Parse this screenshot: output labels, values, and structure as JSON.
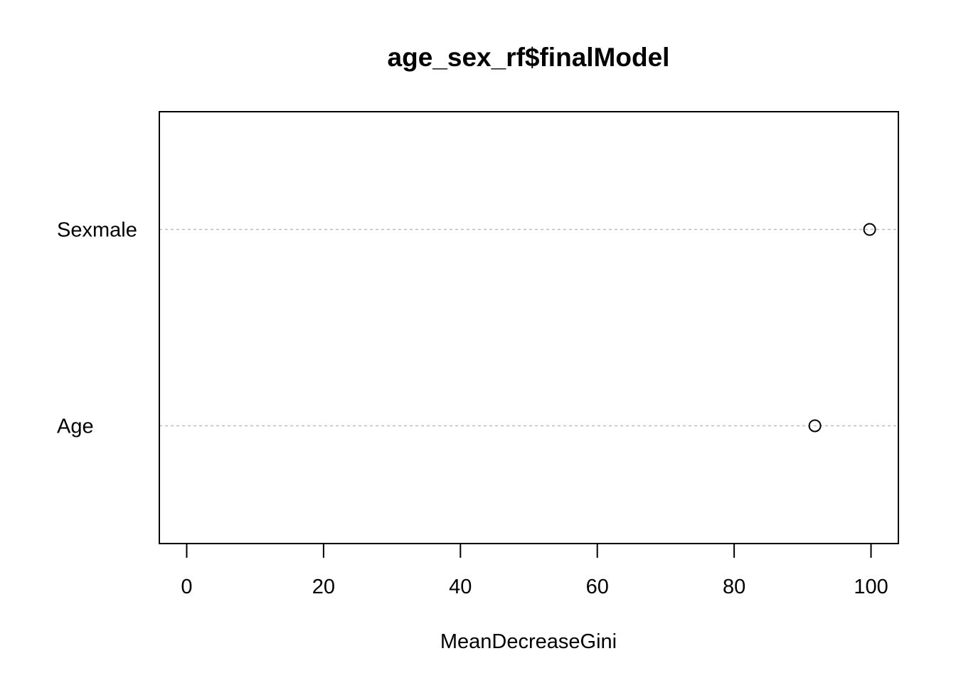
{
  "chart_data": {
    "type": "scatter",
    "title": "age_sex_rf$finalModel",
    "xlabel": "MeanDecreaseGini",
    "ylabel": "",
    "xlim": [
      -4.0,
      104.0
    ],
    "xticks": [
      0,
      20,
      40,
      60,
      80,
      100
    ],
    "xtick_labels": [
      "0",
      "20",
      "40",
      "60",
      "80",
      "100"
    ],
    "categories": [
      "Age",
      "Sexmale"
    ],
    "values": [
      91.8,
      99.8
    ],
    "grid": "dotted horizontal guide lines at each category",
    "legend": "none",
    "marker": "open-circle",
    "colors": {
      "point": "#000000",
      "guide": "#bebebe",
      "frame": "#000000",
      "background": "#ffffff"
    }
  }
}
